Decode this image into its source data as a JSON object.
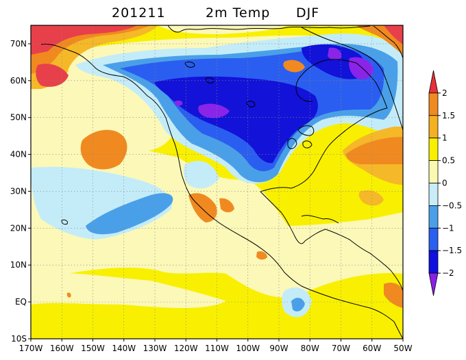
{
  "title": {
    "date": "201211",
    "variable": "2m Temp",
    "season": "DJF"
  },
  "map": {
    "lon_range": [
      -170,
      -50
    ],
    "lat_range": [
      -10,
      75
    ],
    "lon_ticks": [
      "170W",
      "160W",
      "150W",
      "140W",
      "130W",
      "120W",
      "110W",
      "100W",
      "90W",
      "80W",
      "70W",
      "60W",
      "50W"
    ],
    "lat_ticks": [
      "70N",
      "60N",
      "50N",
      "40N",
      "30N",
      "20N",
      "10N",
      "EQ",
      "10S"
    ],
    "lat_tick_values": [
      70,
      60,
      50,
      40,
      30,
      20,
      10,
      0,
      -10
    ],
    "gridlines": "dotted"
  },
  "colorbar": {
    "levels": [
      "2",
      "1.5",
      "1",
      "0.5",
      "0",
      "−0.5",
      "−1",
      "−1.5",
      "−2"
    ],
    "colors_top_to_bottom": [
      "#e8303a",
      "#f08a20",
      "#f4b020",
      "#f8f000",
      "#fbf8b0",
      "#c8ecf8",
      "#4aa0e8",
      "#2a60f0",
      "#1010e0",
      "#8a20e8"
    ]
  },
  "colors": {
    "strong_warm": "#e8404a",
    "warm": "#f08a20",
    "moderate_warm": "#f5b828",
    "light_warm": "#f8f000",
    "pale_warm": "#fbf8b8",
    "pale_cool": "#c4ecf8",
    "cool": "#4aa0e8",
    "strong_cool": "#2a5ef0",
    "very_strong_cool": "#1212d8",
    "extreme_cool": "#8a24e8"
  }
}
